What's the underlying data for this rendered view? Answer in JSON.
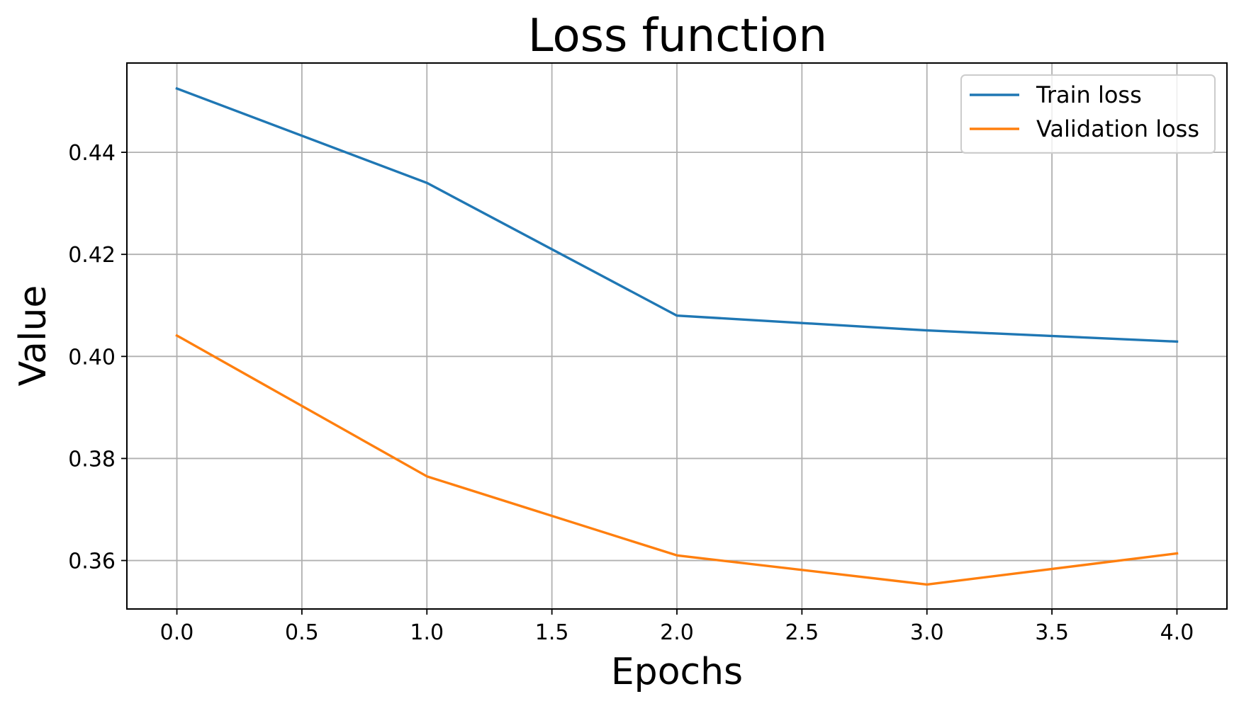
{
  "chart_data": {
    "type": "line",
    "title": "Loss function",
    "xlabel": "Epochs",
    "ylabel": "Value",
    "x": [
      0,
      1,
      2,
      3,
      4
    ],
    "xlim": [
      -0.2,
      4.2
    ],
    "ylim": [
      0.3505,
      0.4575
    ],
    "xticks": [
      0.0,
      0.5,
      1.0,
      1.5,
      2.0,
      2.5,
      3.0,
      3.5,
      4.0
    ],
    "xtick_labels": [
      "0.0",
      "0.5",
      "1.0",
      "1.5",
      "2.0",
      "2.5",
      "3.0",
      "3.5",
      "4.0"
    ],
    "yticks": [
      0.36,
      0.38,
      0.4,
      0.42,
      0.44
    ],
    "ytick_labels": [
      "0.36",
      "0.38",
      "0.40",
      "0.42",
      "0.44"
    ],
    "grid": true,
    "legend_position": "top-right",
    "series": [
      {
        "name": "Train loss",
        "color": "#1f77b4",
        "values": [
          0.4525,
          0.434,
          0.408,
          0.4051,
          0.4029
        ]
      },
      {
        "name": "Validation loss",
        "color": "#ff7f0e",
        "values": [
          0.4041,
          0.3765,
          0.361,
          0.3553,
          0.3614
        ]
      }
    ]
  }
}
